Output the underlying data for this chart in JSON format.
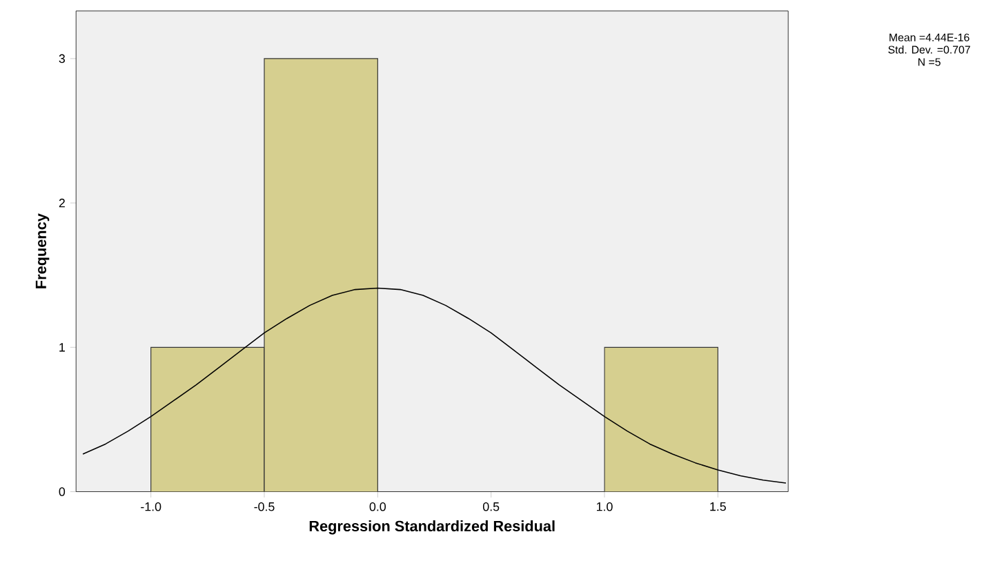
{
  "chart_data": {
    "type": "histogram",
    "xlabel": "Regression Standardized Residual",
    "ylabel": "Frequency",
    "bins": [
      -1.0,
      -0.5,
      0.0,
      0.5,
      1.0,
      1.5
    ],
    "values": [
      1,
      3,
      0,
      0,
      1
    ],
    "color": "#d6cf8f",
    "series": [
      {
        "type": "line",
        "color": "#000000",
        "x": [
          -1.3,
          -1.2,
          -1.1,
          -1.0,
          -0.9,
          -0.8,
          -0.7,
          -0.6,
          -0.5,
          -0.4,
          -0.3,
          -0.2,
          -0.1,
          0.0,
          0.1,
          0.2,
          0.3,
          0.4,
          0.5,
          0.6,
          0.7,
          0.8,
          0.9,
          1.0,
          1.1,
          1.2,
          1.3,
          1.4,
          1.5,
          1.6,
          1.7,
          1.8
        ],
        "values": [
          0.26,
          0.33,
          0.42,
          0.52,
          0.63,
          0.74,
          0.86,
          0.98,
          1.1,
          1.2,
          1.29,
          1.36,
          1.4,
          1.41,
          1.4,
          1.36,
          1.29,
          1.2,
          1.1,
          0.98,
          0.86,
          0.74,
          0.63,
          0.52,
          0.42,
          0.33,
          0.26,
          0.2,
          0.15,
          0.11,
          0.08,
          0.06
        ]
      }
    ],
    "xlim": [
      -1.33,
      1.81
    ],
    "ylim": [
      0,
      3.33
    ],
    "xticks": [
      {
        "value": -1.0,
        "label": "-1.0"
      },
      {
        "value": -0.5,
        "label": "-0.5"
      },
      {
        "value": 0.0,
        "label": "0.0"
      },
      {
        "value": 0.5,
        "label": "0.5"
      },
      {
        "value": 1.0,
        "label": "1.0"
      },
      {
        "value": 1.5,
        "label": "1.5"
      }
    ],
    "yticks": [
      0,
      1,
      2,
      3
    ],
    "annotations": [
      "Mean =4.44E-16",
      "Std. Dev. =0.707",
      "N =5"
    ]
  }
}
